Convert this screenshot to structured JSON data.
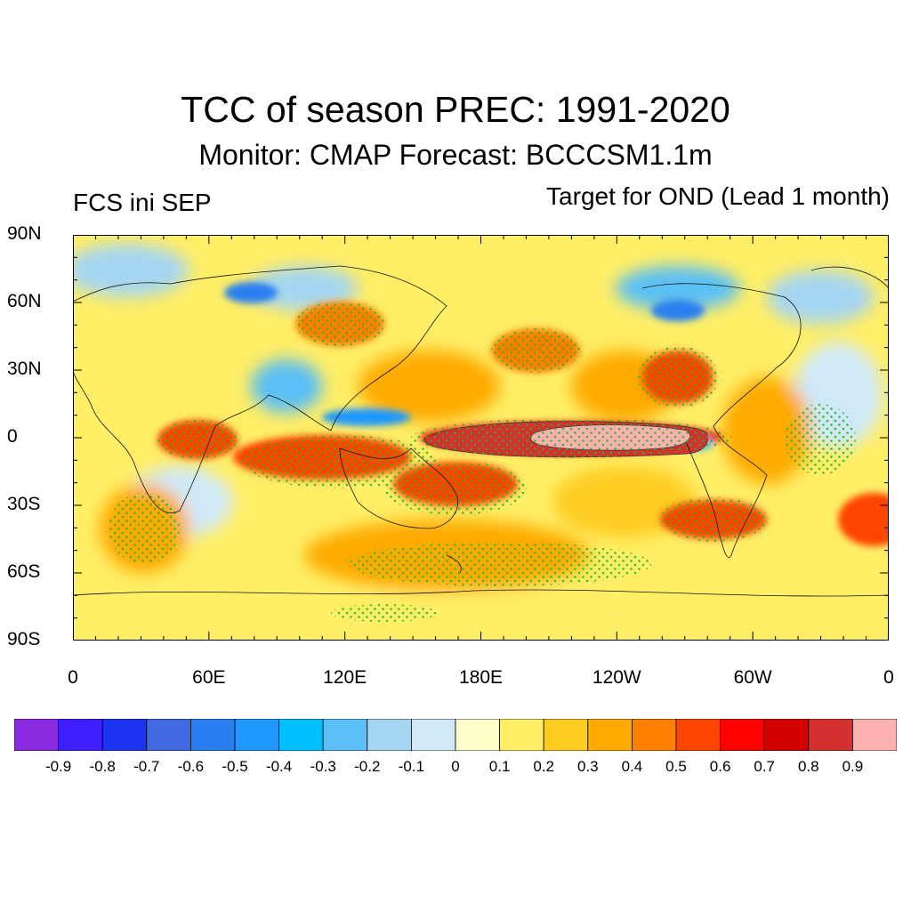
{
  "title": "TCC of season PREC: 1991-2020",
  "subtitle": "Monitor: CMAP   Forecast: BCCCSM1.1m",
  "left_label": "FCS ini SEP",
  "right_label": "Target for OND (Lead 1 month)",
  "map": {
    "lon_range": [
      0,
      360
    ],
    "lat_range": [
      -90,
      90
    ],
    "lat_ticks": [
      "90N",
      "60N",
      "30N",
      "0",
      "30S",
      "60S",
      "90S"
    ],
    "lon_ticks": [
      "0",
      "60E",
      "120E",
      "180E",
      "120W",
      "60W",
      "0"
    ],
    "stippling": "green dots mark significant correlation",
    "stipple_color": "#22b822"
  },
  "colorbar": {
    "colors": [
      "#8a2be2",
      "#3f1fff",
      "#1c34f0",
      "#4169e1",
      "#2a7ff0",
      "#1e98ff",
      "#00bfff",
      "#5ac0f5",
      "#a5d6f2",
      "#cfe9f8",
      "#ffffcc",
      "#ffee66",
      "#ffcc22",
      "#ffaa00",
      "#ff7f00",
      "#ff4500",
      "#ff0000",
      "#d40000",
      "#d43030",
      "#ffb0b0"
    ],
    "labels": [
      "-0.9",
      "-0.8",
      "-0.7",
      "-0.6",
      "-0.5",
      "-0.4",
      "-0.3",
      "-0.2",
      "-0.1",
      "0",
      "0.1",
      "0.2",
      "0.3",
      "0.4",
      "0.5",
      "0.6",
      "0.7",
      "0.8",
      "0.9"
    ]
  }
}
